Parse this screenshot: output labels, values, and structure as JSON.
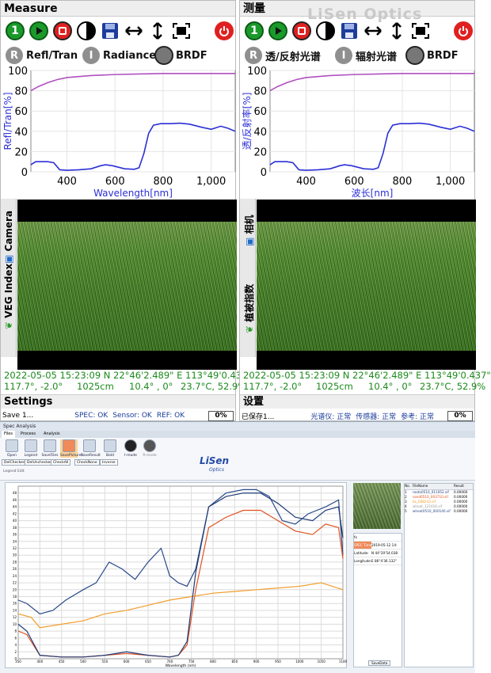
{
  "panels": [
    {
      "title": "Measure",
      "modes": [
        "Refl/Tran",
        "Radiance",
        "BRDF"
      ],
      "mode_icons": [
        "R",
        "I",
        ""
      ],
      "chart": {
        "ylabel": "Refl/Tran[%]",
        "xlabel": "Wavelength[nm]"
      },
      "side_tabs": [
        "VEG Index",
        "Camera"
      ],
      "info_line1": "2022-05-05 15:23:09  N 22°46'2.489\"  E 113°49'0.437\"",
      "info_line2": [
        "117.7°, -2.0°",
        "1025cm",
        "10.4° , 0°",
        "23.7°C, 52.9%"
      ],
      "settings_label": "Settings",
      "status": {
        "save": "Save 1...",
        "spec": "SPEC: OK",
        "sensor": "Sensor: OK",
        "ref": "REF: OK",
        "pct": "0%"
      }
    },
    {
      "title": "测量",
      "modes": [
        "透/反射光谱",
        "辐射光谱",
        "BRDF"
      ],
      "mode_icons": [
        "R",
        "I",
        ""
      ],
      "chart": {
        "ylabel": "透/反射率[%]",
        "xlabel": "波长[nm]"
      },
      "side_tabs": [
        "植被指数",
        "相机"
      ],
      "info_line1": "2022-05-05 15:23:09  N 22°46'2.489\"  E 113°49'0.437\"",
      "info_line2": [
        "117.7°, -2.0°",
        "1025cm",
        "10.4° , 0°",
        "23.7°C, 52.9%"
      ],
      "settings_label": "设置",
      "status": {
        "save": "已保存1...",
        "spec": "光谱仪: 正常",
        "sensor": "传感器: 正常",
        "ref": "参考: 正常",
        "pct": "0%"
      }
    }
  ],
  "watermark": "LiSen Optics",
  "toolbar_icons": [
    "step-one-icon",
    "play-icon",
    "stop-icon",
    "contrast-icon",
    "save-icon",
    "horizontal-arrows-icon",
    "vertical-arrows-icon",
    "fit-screen-icon",
    "power-icon"
  ],
  "toolbar_step_label": "1",
  "colors": {
    "curve": "#2b2fd6",
    "reference": "#b050c0",
    "info_green": "#1b8a1b",
    "accent_red": "#e02020"
  },
  "app": {
    "window_title": "Spec Analysis",
    "tabs": [
      "Files",
      "Process",
      "Analysis"
    ],
    "ribbon": [
      "Open",
      "Legend",
      "SaveFiles",
      "SavePictures",
      "SaveResult",
      "Bold",
      "I-mode",
      "R-mode"
    ],
    "group_label": "Legend Edit",
    "small_buttons": [
      "DelChecked",
      "DelUnchecked",
      "CheckAll",
      "CheckNone",
      "Inverse"
    ],
    "logo": "LiSen",
    "logo_sub": "Optics",
    "plot_xlabel": "Wavelength (nm)",
    "info_rows": [
      {
        "k": "fx",
        "v": ""
      },
      {
        "k": "SPEC Time:",
        "v": "2019-05-12 14:"
      },
      {
        "k": "Latitude:",
        "v": "N 44°20'54.038"
      },
      {
        "k": "Longitude:",
        "v": "E 86°4'36.132\""
      }
    ],
    "save_data": "SaveData",
    "file_headers": [
      "No.",
      "FileName",
      "Result"
    ],
    "files": [
      {
        "no": "1",
        "name": "rooto0510_011052.sif",
        "result": "0.00000",
        "color": "#1f3b78"
      },
      {
        "no": "2",
        "name": "sand0510_003710.sif",
        "result": "0.00000",
        "color": "#e0501e"
      },
      {
        "no": "3",
        "name": "bs_008210.sif",
        "result": "0.00000",
        "color": "#f39c2a"
      },
      {
        "no": "4",
        "name": "wheat_121616.sif",
        "result": "0.00000",
        "color": "#999999"
      },
      {
        "no": "5",
        "name": "wheat0510_000140.sif",
        "result": "0.00000",
        "color": "#2a4a8a"
      }
    ]
  },
  "chart_data": [
    {
      "type": "line",
      "xlabel": "Wavelength[nm]",
      "ylabel": "Refl/Tran[%]",
      "xlim": [
        250,
        1100
      ],
      "ylim": [
        0,
        100
      ],
      "xticks": [
        400,
        600,
        800,
        "1,000"
      ],
      "yticks": [
        0,
        20,
        40,
        60,
        80,
        100
      ],
      "series": [
        {
          "color": "#b050c0",
          "x": [
            250,
            280,
            320,
            360,
            400,
            500,
            600,
            700,
            800,
            900,
            1000,
            1100
          ],
          "y": [
            80,
            84,
            88,
            91,
            93,
            95,
            96,
            96.5,
            97,
            97,
            97,
            97
          ]
        },
        {
          "color": "#2b2fd6",
          "x": [
            250,
            270,
            320,
            345,
            370,
            400,
            450,
            500,
            540,
            560,
            590,
            640,
            680,
            700,
            720,
            740,
            760,
            790,
            830,
            870,
            910,
            960,
            1000,
            1040,
            1070,
            1100
          ],
          "y": [
            7,
            10,
            10,
            9,
            2,
            1.5,
            2,
            3,
            6,
            7,
            6,
            3,
            2.5,
            4,
            18,
            38,
            46,
            47.5,
            47.5,
            48,
            47,
            44,
            42,
            45,
            43,
            40
          ]
        }
      ]
    },
    {
      "type": "line",
      "xlabel": "Wavelength (nm)",
      "xlim": [
        350,
        1100
      ],
      "ylim": [
        0,
        50
      ],
      "xticks": [
        350,
        400,
        450,
        500,
        550,
        600,
        650,
        700,
        750,
        800,
        850,
        900,
        950,
        1000,
        1050,
        1100
      ],
      "yticks": [
        0,
        2,
        4,
        6,
        8,
        10,
        12,
        14,
        16,
        18,
        20,
        22,
        24,
        26,
        28,
        30,
        32,
        34,
        36,
        38,
        40,
        42,
        44,
        46,
        48
      ],
      "series": [
        {
          "color": "#2a4a8a",
          "x": [
            350,
            370,
            400,
            430,
            460,
            500,
            530,
            560,
            590,
            620,
            650,
            680,
            700,
            720,
            740,
            760,
            790,
            830,
            870,
            900,
            930,
            960,
            990,
            1020,
            1060,
            1090,
            1100
          ],
          "y": [
            17,
            16,
            13,
            14,
            17,
            20,
            22,
            28,
            26,
            23,
            28,
            32,
            24,
            22,
            21,
            26,
            44,
            48,
            49,
            49,
            47,
            40,
            39,
            42,
            44,
            46,
            30
          ]
        },
        {
          "color": "#e0501e",
          "x": [
            350,
            370,
            400,
            450,
            500,
            550,
            600,
            650,
            700,
            720,
            740,
            760,
            790,
            830,
            870,
            910,
            950,
            990,
            1030,
            1060,
            1090,
            1100
          ],
          "y": [
            8,
            7,
            1,
            0.5,
            0.5,
            1,
            1.5,
            1,
            0.5,
            1,
            4,
            20,
            38,
            41,
            43,
            43,
            40,
            37,
            36,
            39,
            38,
            29
          ]
        },
        {
          "color": "#f39c2a",
          "x": [
            350,
            380,
            400,
            450,
            500,
            550,
            600,
            650,
            700,
            750,
            800,
            850,
            900,
            950,
            1000,
            1050,
            1100
          ],
          "y": [
            13,
            12,
            9,
            10,
            11,
            13,
            14,
            15.5,
            17,
            18,
            19,
            19.5,
            20,
            20.5,
            21,
            22,
            20
          ]
        },
        {
          "color": "#1f3b78",
          "x": [
            350,
            370,
            400,
            450,
            500,
            550,
            600,
            650,
            700,
            720,
            740,
            760,
            790,
            830,
            870,
            910,
            950,
            990,
            1030,
            1060,
            1090,
            1100
          ],
          "y": [
            10,
            8,
            1,
            0.5,
            0.5,
            1,
            2,
            1,
            0.5,
            1,
            5,
            25,
            44,
            47,
            48,
            48,
            45,
            41,
            40,
            43,
            44,
            35
          ]
        }
      ]
    }
  ]
}
